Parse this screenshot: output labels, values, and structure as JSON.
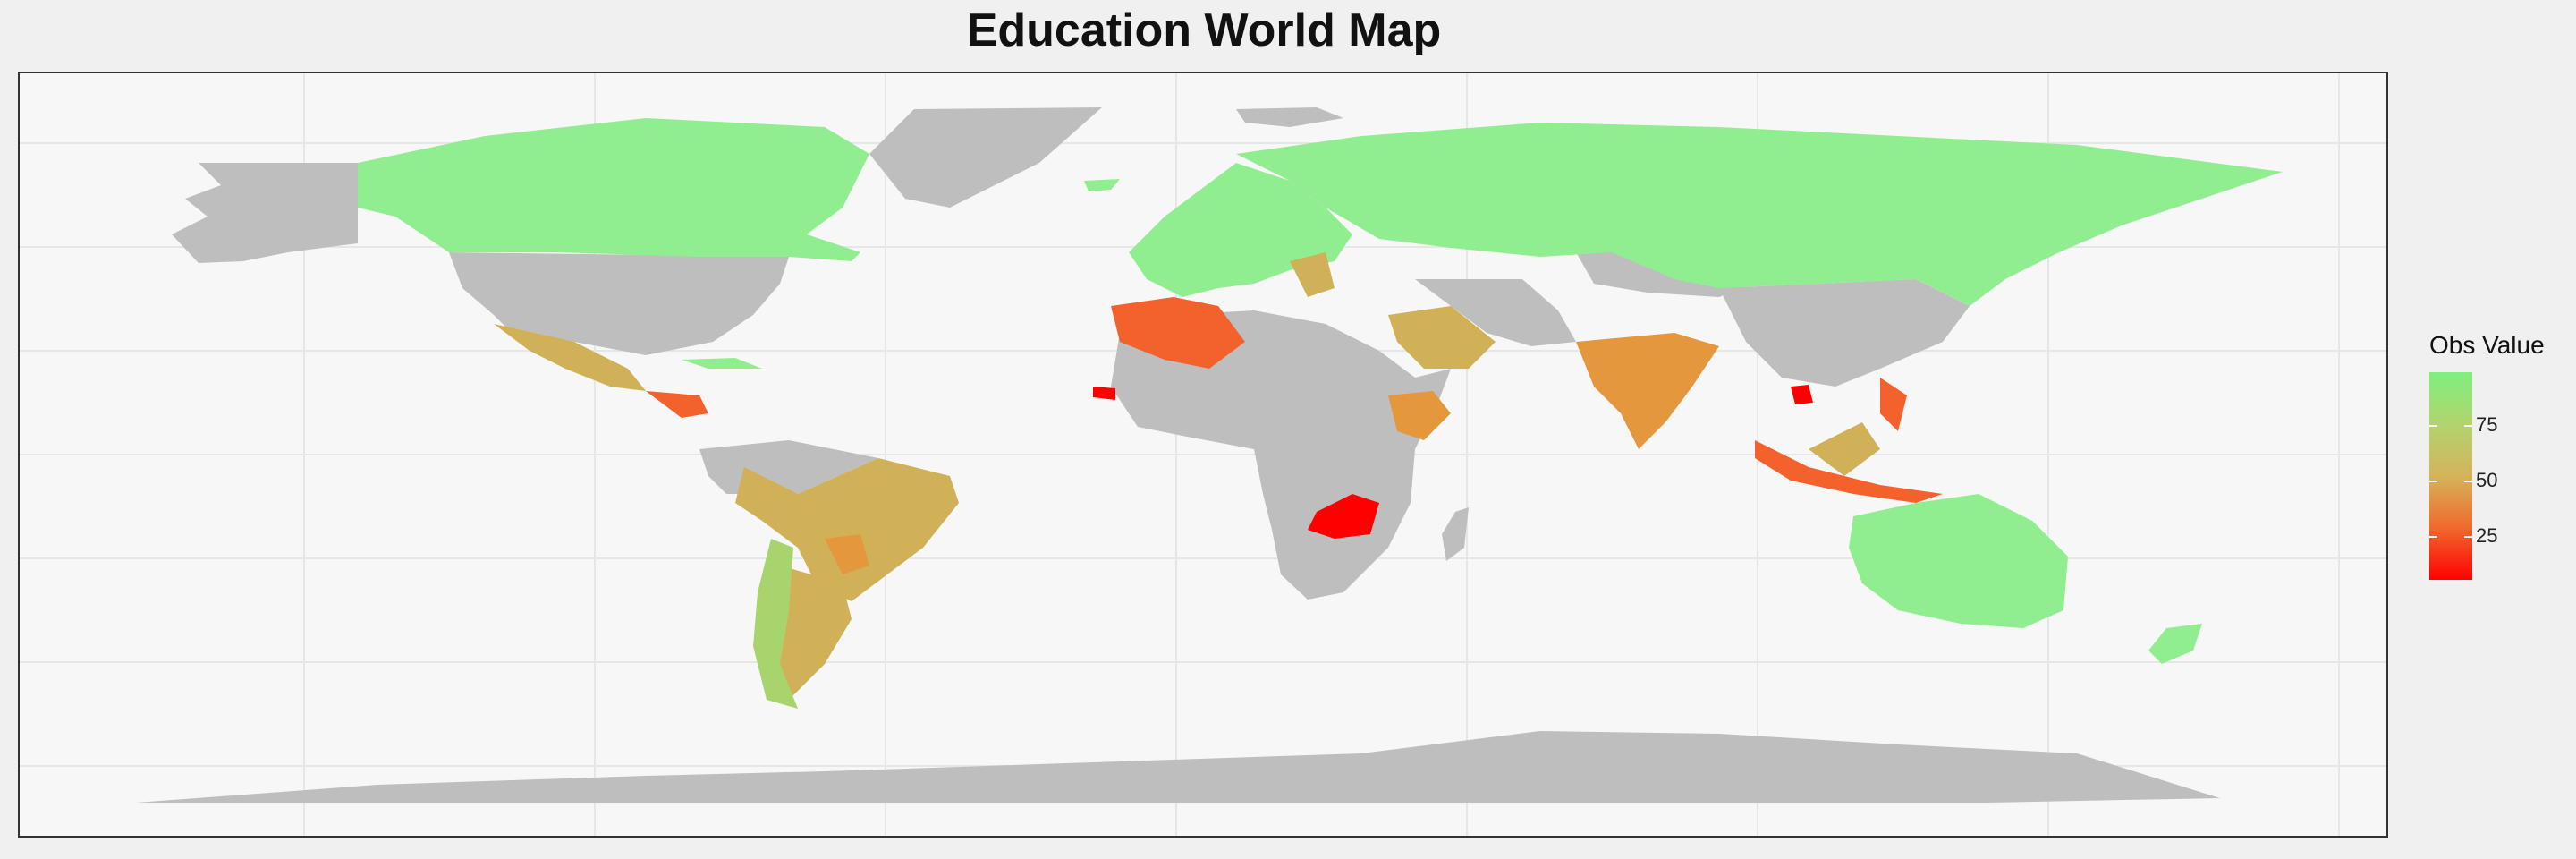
{
  "title": "Education World Map",
  "legend": {
    "title": "Obs Value",
    "ticks": [
      "75",
      "50",
      "25"
    ],
    "gradient_colors": [
      "#ff0000",
      "#f0692d",
      "#d4b45a",
      "#b2d46e",
      "#7ef07e"
    ]
  },
  "colors": {
    "no_data": "#bebebe",
    "panel_background": "#f7f7f7",
    "gridline": "#e6e6e6",
    "high": "#90ee90",
    "mid_high": "#d1b157",
    "mid": "#e5973e",
    "low": "#f3622c",
    "lowest": "#ff0000"
  },
  "regions": [
    {
      "name": "Canada",
      "level": "high"
    },
    {
      "name": "Alaska (USA)",
      "level": "no_data"
    },
    {
      "name": "United States",
      "level": "no_data"
    },
    {
      "name": "Greenland",
      "level": "no_data"
    },
    {
      "name": "Mexico",
      "level": "mid_high"
    },
    {
      "name": "Central America",
      "level": "low"
    },
    {
      "name": "Cuba",
      "level": "high"
    },
    {
      "name": "Brazil",
      "level": "mid_high"
    },
    {
      "name": "Argentina",
      "level": "mid_high"
    },
    {
      "name": "Chile",
      "level": "mid_high_green"
    },
    {
      "name": "Paraguay",
      "level": "mid"
    },
    {
      "name": "Venezuela / Colombia",
      "level": "no_data"
    },
    {
      "name": "Europe",
      "level": "high"
    },
    {
      "name": "Russia",
      "level": "high"
    },
    {
      "name": "Balkans",
      "level": "mid_high"
    },
    {
      "name": "Algeria",
      "level": "low"
    },
    {
      "name": "Senegal",
      "level": "lowest"
    },
    {
      "name": "Saudi Arabia",
      "level": "mid_high"
    },
    {
      "name": "India",
      "level": "mid"
    },
    {
      "name": "Ethiopia",
      "level": "mid"
    },
    {
      "name": "Zambia",
      "level": "lowest"
    },
    {
      "name": "Indonesia",
      "level": "low"
    },
    {
      "name": "Cambodia",
      "level": "lowest"
    },
    {
      "name": "Australia",
      "level": "high"
    },
    {
      "name": "New Zealand",
      "level": "high"
    },
    {
      "name": "Antarctica",
      "level": "no_data"
    },
    {
      "name": "Africa (other)",
      "level": "no_data"
    },
    {
      "name": "Asia (other)",
      "level": "no_data"
    }
  ]
}
